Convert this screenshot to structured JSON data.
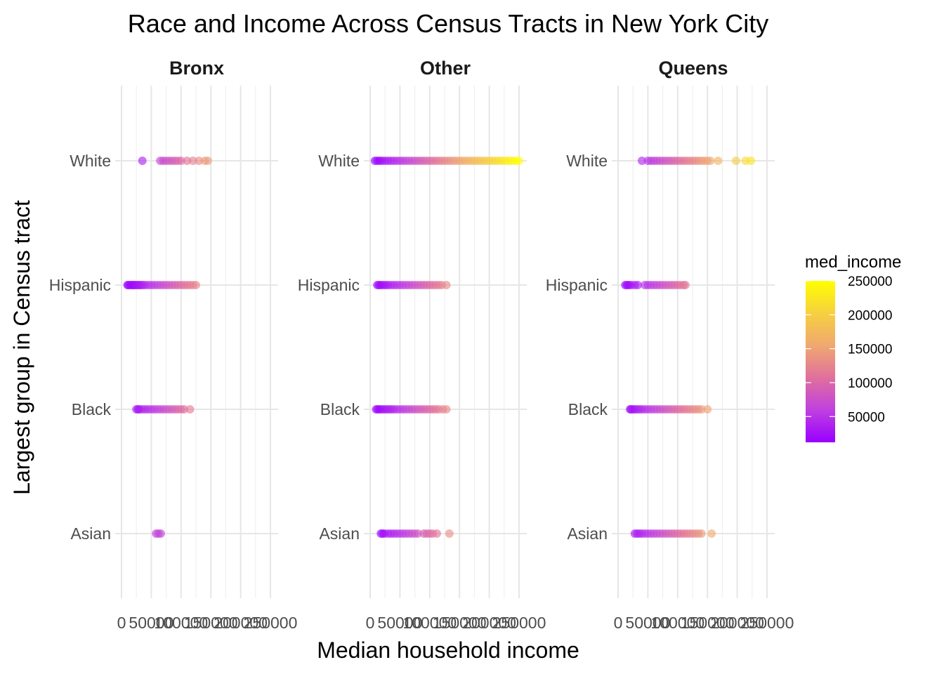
{
  "chart_data": {
    "type": "scatter",
    "title": "Race and Income Across Census Tracts in New York City",
    "xlabel": "Median household income",
    "ylabel": "Largest group in Census tract",
    "categories": [
      "Asian",
      "Black",
      "Hispanic",
      "White"
    ],
    "xlim": [
      0,
      250000
    ],
    "x_ticks": [
      "0",
      "50000",
      "100000",
      "150000",
      "200000",
      "250000"
    ],
    "grid": true,
    "color_scale": {
      "name": "med_income",
      "palette": "plasma",
      "range": [
        12000,
        250000
      ],
      "ticks": [
        "50000",
        "100000",
        "150000",
        "200000",
        "250000"
      ],
      "tick_values": [
        50000,
        100000,
        150000,
        200000,
        250000
      ],
      "stops": [
        "#9900ff",
        "#c040e0",
        "#e0709c",
        "#f0a870",
        "#f6d040",
        "#ffff00"
      ],
      "legend_position": "right"
    },
    "facets": [
      {
        "name": "Bronx",
        "series": [
          {
            "group": "White",
            "points": [
              35000,
              65000,
              70000,
              75000,
              80000,
              85000,
              90000,
              95000,
              100000,
              110000,
              120000,
              130000,
              140000,
              145000
            ]
          },
          {
            "group": "Hispanic",
            "points": [
              10000,
              12000,
              15000,
              18000,
              20000,
              22000,
              25000,
              28000,
              30000,
              33000,
              36000,
              40000,
              45000,
              50000,
              55000,
              60000,
              65000,
              70000,
              75000,
              80000,
              85000,
              90000,
              95000,
              100000,
              105000,
              110000,
              115000,
              120000,
              125000
            ]
          },
          {
            "group": "Black",
            "points": [
              25000,
              28000,
              30000,
              35000,
              40000,
              45000,
              50000,
              55000,
              60000,
              65000,
              70000,
              75000,
              80000,
              85000,
              90000,
              95000,
              100000,
              105000,
              115000
            ]
          },
          {
            "group": "Asian",
            "points": [
              58000,
              62000,
              66000
            ]
          }
        ]
      },
      {
        "name": "Other",
        "series": [
          {
            "group": "White",
            "points": [
              8000,
              12000,
              16000,
              20000,
              25000,
              30000,
              35000,
              40000,
              45000,
              50000,
              55000,
              60000,
              65000,
              70000,
              75000,
              80000,
              85000,
              90000,
              95000,
              100000,
              105000,
              110000,
              115000,
              120000,
              125000,
              130000,
              135000,
              140000,
              145000,
              150000,
              155000,
              160000,
              165000,
              170000,
              175000,
              180000,
              185000,
              190000,
              195000,
              200000,
              205000,
              210000,
              215000,
              220000,
              225000,
              230000,
              235000,
              240000,
              245000,
              250000
            ]
          },
          {
            "group": "Hispanic",
            "points": [
              12000,
              15000,
              18000,
              22000,
              26000,
              30000,
              35000,
              40000,
              45000,
              50000,
              55000,
              60000,
              65000,
              70000,
              75000,
              80000,
              85000,
              90000,
              95000,
              100000,
              105000,
              110000,
              115000,
              120000,
              128000
            ]
          },
          {
            "group": "Black",
            "points": [
              10000,
              13000,
              16000,
              20000,
              24000,
              28000,
              32000,
              36000,
              40000,
              45000,
              50000,
              55000,
              60000,
              65000,
              70000,
              75000,
              80000,
              85000,
              90000,
              95000,
              100000,
              105000,
              110000,
              115000,
              122000,
              128000
            ]
          },
          {
            "group": "Asian",
            "points": [
              18000,
              21000,
              24000,
              30000,
              35000,
              40000,
              45000,
              50000,
              55000,
              60000,
              65000,
              70000,
              75000,
              80000,
              90000,
              95000,
              100000,
              105000,
              112000,
              133000
            ]
          }
        ]
      },
      {
        "name": "Queens",
        "series": [
          {
            "group": "White",
            "points": [
              40000,
              50000,
              55000,
              60000,
              65000,
              70000,
              75000,
              80000,
              85000,
              90000,
              95000,
              100000,
              105000,
              110000,
              115000,
              120000,
              125000,
              130000,
              135000,
              140000,
              145000,
              150000,
              155000,
              168000,
              198000,
              214000,
              223000
            ]
          },
          {
            "group": "Hispanic",
            "points": [
              12000,
              15000,
              18000,
              22000,
              28000,
              33000,
              45000,
              50000,
              55000,
              60000,
              65000,
              70000,
              75000,
              80000,
              85000,
              90000,
              95000,
              100000,
              105000,
              110000,
              113000
            ]
          },
          {
            "group": "Black",
            "points": [
              20000,
              22000,
              25000,
              28000,
              32000,
              36000,
              40000,
              45000,
              50000,
              55000,
              60000,
              65000,
              70000,
              75000,
              80000,
              85000,
              90000,
              95000,
              100000,
              105000,
              110000,
              115000,
              120000,
              125000,
              130000,
              135000,
              140000,
              150000
            ]
          },
          {
            "group": "Asian",
            "points": [
              28000,
              32000,
              36000,
              40000,
              45000,
              50000,
              55000,
              60000,
              65000,
              70000,
              75000,
              80000,
              85000,
              90000,
              95000,
              100000,
              105000,
              110000,
              115000,
              120000,
              125000,
              130000,
              135000,
              140000,
              157000
            ]
          }
        ]
      }
    ]
  }
}
